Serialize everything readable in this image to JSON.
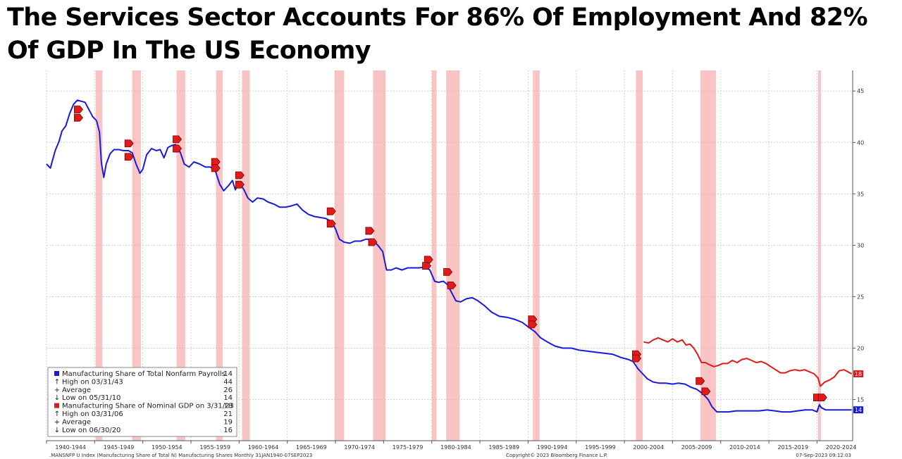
{
  "title": "The Services Sector Accounts For 86% Of Employment And 82% Of GDP In The US Economy",
  "chart_data": {
    "type": "line",
    "title": "The Services Sector Accounts For 86% Of Employment And 82% Of GDP In The US Economy",
    "xlim": [
      1940.0,
      2023.7
    ],
    "ylim": [
      11,
      47
    ],
    "grid": true,
    "x_tick_labels": [
      "1940-1944",
      "1945-1949",
      "1950-1954",
      "1955-1959",
      "1960-1964",
      "1965-1969",
      "1970-1974",
      "1975-1979",
      "1980-1984",
      "1985-1989",
      "1990-1994",
      "1995-1999",
      "2000-2004",
      "2005-2009",
      "2010-2014",
      "2015-2019",
      "2020-2024"
    ],
    "y_ticks": [
      15,
      20,
      25,
      30,
      35,
      40,
      45
    ],
    "recessions": [
      [
        1945.1,
        1945.8
      ],
      [
        1948.9,
        1949.8
      ],
      [
        1953.5,
        1954.4
      ],
      [
        1957.6,
        1958.3
      ],
      [
        1960.3,
        1961.1
      ],
      [
        1969.9,
        1970.9
      ],
      [
        1973.9,
        1975.2
      ],
      [
        1980.0,
        1980.5
      ],
      [
        1981.5,
        1982.9
      ],
      [
        1990.5,
        1991.2
      ],
      [
        2001.2,
        2001.9
      ],
      [
        2007.9,
        2009.5
      ],
      [
        2020.1,
        2020.4
      ]
    ],
    "series": [
      {
        "name": "Manufacturing Share of Total Nonfarm Payrolls",
        "color": "#1a1adf",
        "last_value": "14",
        "points": [
          [
            1940.0,
            37.9
          ],
          [
            1940.4,
            37.5
          ],
          [
            1940.9,
            39.2
          ],
          [
            1941.3,
            40.1
          ],
          [
            1941.6,
            41.1
          ],
          [
            1942.0,
            41.6
          ],
          [
            1942.4,
            42.8
          ],
          [
            1942.8,
            43.7
          ],
          [
            1943.2,
            44.1
          ],
          [
            1943.6,
            44.0
          ],
          [
            1944.0,
            43.9
          ],
          [
            1944.4,
            43.2
          ],
          [
            1944.8,
            42.5
          ],
          [
            1945.2,
            42.1
          ],
          [
            1945.5,
            41.0
          ],
          [
            1945.7,
            38.0
          ],
          [
            1945.95,
            36.6
          ],
          [
            1946.2,
            37.9
          ],
          [
            1946.6,
            38.9
          ],
          [
            1947.0,
            39.3
          ],
          [
            1947.5,
            39.3
          ],
          [
            1948.0,
            39.2
          ],
          [
            1948.5,
            39.2
          ],
          [
            1948.9,
            39.0
          ],
          [
            1949.3,
            37.9
          ],
          [
            1949.7,
            37.0
          ],
          [
            1950.0,
            37.4
          ],
          [
            1950.4,
            38.8
          ],
          [
            1950.9,
            39.4
          ],
          [
            1951.4,
            39.2
          ],
          [
            1951.8,
            39.3
          ],
          [
            1952.2,
            38.5
          ],
          [
            1952.6,
            39.5
          ],
          [
            1953.0,
            39.7
          ],
          [
            1953.4,
            39.8
          ],
          [
            1953.9,
            39.0
          ],
          [
            1954.3,
            37.9
          ],
          [
            1954.8,
            37.6
          ],
          [
            1955.3,
            38.1
          ],
          [
            1955.9,
            37.9
          ],
          [
            1956.5,
            37.6
          ],
          [
            1957.0,
            37.6
          ],
          [
            1957.5,
            37.3
          ],
          [
            1958.0,
            35.9
          ],
          [
            1958.4,
            35.3
          ],
          [
            1958.9,
            35.8
          ],
          [
            1959.3,
            36.3
          ],
          [
            1959.6,
            35.4
          ],
          [
            1960.0,
            36.1
          ],
          [
            1960.5,
            35.4
          ],
          [
            1960.9,
            34.6
          ],
          [
            1961.4,
            34.2
          ],
          [
            1961.9,
            34.6
          ],
          [
            1962.5,
            34.5
          ],
          [
            1963.0,
            34.2
          ],
          [
            1963.6,
            34.0
          ],
          [
            1964.2,
            33.7
          ],
          [
            1964.8,
            33.7
          ],
          [
            1965.3,
            33.8
          ],
          [
            1966.0,
            34.0
          ],
          [
            1966.6,
            33.4
          ],
          [
            1967.2,
            33.0
          ],
          [
            1967.8,
            32.8
          ],
          [
            1968.4,
            32.7
          ],
          [
            1969.0,
            32.6
          ],
          [
            1969.6,
            32.3
          ],
          [
            1970.0,
            31.6
          ],
          [
            1970.4,
            30.6
          ],
          [
            1970.9,
            30.3
          ],
          [
            1971.5,
            30.2
          ],
          [
            1972.0,
            30.4
          ],
          [
            1972.6,
            30.4
          ],
          [
            1973.2,
            30.6
          ],
          [
            1973.8,
            30.5
          ],
          [
            1974.4,
            30.0
          ],
          [
            1974.9,
            29.4
          ],
          [
            1975.3,
            27.6
          ],
          [
            1975.8,
            27.6
          ],
          [
            1976.3,
            27.8
          ],
          [
            1976.9,
            27.6
          ],
          [
            1977.5,
            27.8
          ],
          [
            1978.1,
            27.8
          ],
          [
            1978.7,
            27.8
          ],
          [
            1979.3,
            27.9
          ],
          [
            1979.8,
            27.6
          ],
          [
            1980.3,
            26.5
          ],
          [
            1980.7,
            26.4
          ],
          [
            1981.2,
            26.5
          ],
          [
            1981.6,
            26.2
          ],
          [
            1982.0,
            25.5
          ],
          [
            1982.5,
            24.6
          ],
          [
            1983.0,
            24.5
          ],
          [
            1983.6,
            24.8
          ],
          [
            1984.2,
            24.9
          ],
          [
            1984.8,
            24.6
          ],
          [
            1985.5,
            24.1
          ],
          [
            1986.2,
            23.5
          ],
          [
            1987.0,
            23.1
          ],
          [
            1987.8,
            23.0
          ],
          [
            1988.6,
            22.8
          ],
          [
            1989.4,
            22.5
          ],
          [
            1990.1,
            22.0
          ],
          [
            1990.7,
            21.6
          ],
          [
            1991.3,
            21.0
          ],
          [
            1992.0,
            20.6
          ],
          [
            1992.8,
            20.2
          ],
          [
            1993.6,
            20.0
          ],
          [
            1994.5,
            20.0
          ],
          [
            1995.3,
            19.8
          ],
          [
            1996.2,
            19.7
          ],
          [
            1997.0,
            19.6
          ],
          [
            1997.9,
            19.5
          ],
          [
            1998.8,
            19.4
          ],
          [
            1999.6,
            19.1
          ],
          [
            2000.4,
            18.9
          ],
          [
            2000.9,
            18.7
          ],
          [
            2001.4,
            18.0
          ],
          [
            2001.9,
            17.5
          ],
          [
            2002.4,
            17.0
          ],
          [
            2003.0,
            16.7
          ],
          [
            2003.6,
            16.6
          ],
          [
            2004.3,
            16.6
          ],
          [
            2005.0,
            16.5
          ],
          [
            2005.6,
            16.6
          ],
          [
            2006.3,
            16.5
          ],
          [
            2006.9,
            16.2
          ],
          [
            2007.5,
            16.0
          ],
          [
            2008.1,
            15.6
          ],
          [
            2008.7,
            15.0
          ],
          [
            2009.1,
            14.3
          ],
          [
            2009.6,
            13.8
          ],
          [
            2010.1,
            13.8
          ],
          [
            2010.8,
            13.8
          ],
          [
            2011.6,
            13.9
          ],
          [
            2012.4,
            13.9
          ],
          [
            2013.2,
            13.9
          ],
          [
            2014.0,
            13.9
          ],
          [
            2014.8,
            14.0
          ],
          [
            2015.6,
            13.9
          ],
          [
            2016.4,
            13.8
          ],
          [
            2017.2,
            13.8
          ],
          [
            2018.0,
            13.9
          ],
          [
            2018.8,
            14.0
          ],
          [
            2019.5,
            14.0
          ],
          [
            2020.0,
            13.8
          ],
          [
            2020.25,
            14.5
          ],
          [
            2020.45,
            14.2
          ],
          [
            2020.9,
            14.0
          ],
          [
            2021.5,
            14.0
          ],
          [
            2022.2,
            14.0
          ],
          [
            2022.9,
            14.0
          ],
          [
            2023.6,
            14.0
          ]
        ]
      },
      {
        "name": "Manufacturing Share of Nominal GDP on 3/31/23",
        "color": "#e11a1a",
        "last_value": "18",
        "points": [
          [
            2002.0,
            20.6
          ],
          [
            2002.5,
            20.5
          ],
          [
            2003.0,
            20.8
          ],
          [
            2003.5,
            21.0
          ],
          [
            2004.0,
            20.8
          ],
          [
            2004.5,
            20.6
          ],
          [
            2005.0,
            20.9
          ],
          [
            2005.5,
            20.6
          ],
          [
            2006.0,
            20.8
          ],
          [
            2006.4,
            20.3
          ],
          [
            2006.8,
            20.4
          ],
          [
            2007.2,
            20.0
          ],
          [
            2007.6,
            19.4
          ],
          [
            2008.0,
            18.6
          ],
          [
            2008.4,
            18.6
          ],
          [
            2008.8,
            18.4
          ],
          [
            2009.3,
            18.2
          ],
          [
            2009.7,
            18.3
          ],
          [
            2010.2,
            18.5
          ],
          [
            2010.7,
            18.5
          ],
          [
            2011.2,
            18.8
          ],
          [
            2011.7,
            18.6
          ],
          [
            2012.2,
            18.9
          ],
          [
            2012.7,
            19.0
          ],
          [
            2013.2,
            18.8
          ],
          [
            2013.7,
            18.6
          ],
          [
            2014.2,
            18.7
          ],
          [
            2014.7,
            18.5
          ],
          [
            2015.2,
            18.2
          ],
          [
            2015.7,
            17.9
          ],
          [
            2016.2,
            17.6
          ],
          [
            2016.7,
            17.6
          ],
          [
            2017.2,
            17.8
          ],
          [
            2017.7,
            17.9
          ],
          [
            2018.2,
            17.8
          ],
          [
            2018.7,
            17.9
          ],
          [
            2019.2,
            17.7
          ],
          [
            2019.7,
            17.5
          ],
          [
            2020.1,
            17.1
          ],
          [
            2020.35,
            16.3
          ],
          [
            2020.8,
            16.7
          ],
          [
            2021.3,
            16.9
          ],
          [
            2021.8,
            17.2
          ],
          [
            2022.3,
            17.8
          ],
          [
            2022.8,
            17.9
          ],
          [
            2023.2,
            17.7
          ],
          [
            2023.6,
            17.5
          ]
        ]
      }
    ],
    "markers": [
      [
        1943.25,
        43.2
      ],
      [
        1943.25,
        42.4
      ],
      [
        1948.5,
        39.9
      ],
      [
        1948.5,
        38.6
      ],
      [
        1953.5,
        40.3
      ],
      [
        1953.5,
        39.4
      ],
      [
        1957.5,
        38.1
      ],
      [
        1957.5,
        37.5
      ],
      [
        1960.0,
        36.8
      ],
      [
        1960.0,
        35.9
      ],
      [
        1969.5,
        33.3
      ],
      [
        1969.5,
        32.1
      ],
      [
        1973.5,
        31.4
      ],
      [
        1973.8,
        30.3
      ],
      [
        1979.6,
        28.6
      ],
      [
        1979.4,
        28.0
      ],
      [
        1981.6,
        27.4
      ],
      [
        1982.0,
        26.1
      ],
      [
        1990.4,
        22.8
      ],
      [
        1990.4,
        22.3
      ],
      [
        2001.2,
        19.4
      ],
      [
        2001.2,
        19.0
      ],
      [
        2007.8,
        16.8
      ],
      [
        2008.4,
        15.8
      ],
      [
        2020.0,
        15.2
      ],
      [
        2020.5,
        15.2
      ]
    ],
    "legend": {
      "position": "bottom-left",
      "rows": [
        {
          "symbol": "square-blue",
          "label": "Manufacturing Share of Total Nonfarm Payrolls",
          "value": "14"
        },
        {
          "symbol": "high",
          "label": "High on 03/31/43",
          "value": "44"
        },
        {
          "symbol": "average",
          "label": "Average",
          "value": "26"
        },
        {
          "symbol": "low",
          "label": "Low on 05/31/10",
          "value": "14"
        },
        {
          "symbol": "square-red",
          "label": "Manufacturing Share of Nominal GDP on 3/31/23",
          "value": "18"
        },
        {
          "symbol": "high",
          "label": "High on 03/31/06",
          "value": "21"
        },
        {
          "symbol": "average",
          "label": "Average",
          "value": "19"
        },
        {
          "symbol": "low",
          "label": "Low on 06/30/20",
          "value": "16"
        }
      ]
    }
  },
  "footer": {
    "left": ".MANSNFP U Index (Manufacturing Share of Total N) Manufacturing Shares  Monthly 31JAN1940-07SEP2023",
    "center": "Copyright© 2023 Bloomberg Finance L.P.",
    "right": "07-Sep-2023 09:12:03"
  }
}
